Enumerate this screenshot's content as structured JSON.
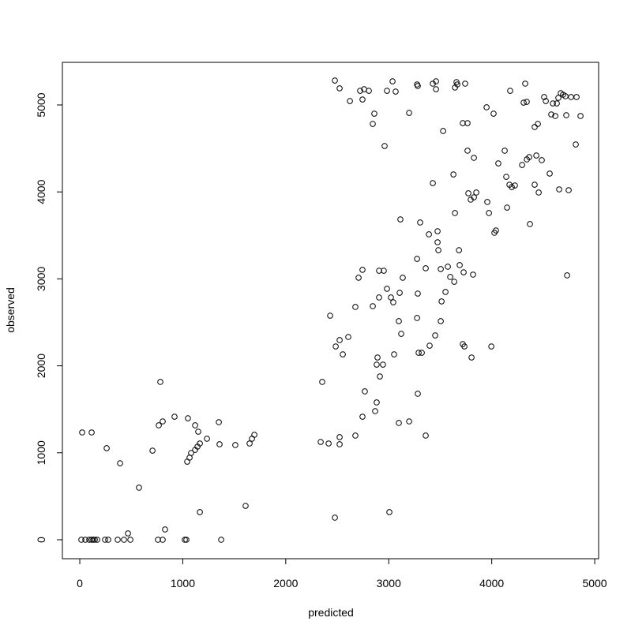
{
  "chart_data": {
    "type": "scatter",
    "xlabel": "predicted",
    "ylabel": "observed",
    "color": "#000000",
    "xlim": [
      -169,
      5038
    ],
    "ylim": [
      -218,
      5490
    ],
    "xticks": [
      0,
      1000,
      2000,
      3000,
      4000,
      5000
    ],
    "yticks": [
      0,
      1000,
      2000,
      3000,
      4000,
      5000
    ],
    "x": [
      15,
      54,
      92,
      115,
      130,
      146,
      169,
      245,
      276,
      368,
      429,
      491,
      759,
      805,
      1020,
      1035,
      1373,
      468,
      828,
      1166,
      1610,
      2477,
      3006,
      575,
      391,
      261,
      23,
      115,
      706,
      782,
      767,
      805,
      920,
      1050,
      1120,
      1150,
      1235,
      1357,
      1350,
      1510,
      1649,
      1672,
      1695,
      1043,
      1066,
      1081,
      1120,
      1143,
      1166,
      2477,
      2523,
      2623,
      2722,
      2761,
      2807,
      2745,
      2860,
      2845,
      2960,
      2983,
      3037,
      3067,
      3198,
      3275,
      3282,
      3428,
      3459,
      3459,
      3643,
      3658,
      3666,
      3742,
      3528,
      3719,
      3765,
      3765,
      3827,
      3950,
      4018,
      4179,
      4310,
      4325,
      4340,
      4417,
      4448,
      4509,
      4525,
      4578,
      4594,
      4617,
      4632,
      4647,
      4670,
      4693,
      4716,
      4724,
      4824,
      4862,
      4770,
      4816,
      4064,
      4126,
      4141,
      4172,
      4195,
      4225,
      4149,
      4295,
      4341,
      4364,
      4433,
      4486,
      4417,
      4456,
      4563,
      4655,
      4747,
      4732,
      4371,
      3428,
      3628,
      3773,
      3796,
      3827,
      3850,
      3957,
      3973,
      4026,
      4041,
      3643,
      3113,
      3305,
      3474,
      3390,
      3474,
      3482,
      3682,
      3275,
      3505,
      3574,
      3689,
      3727,
      3597,
      3636,
      3819,
      3359,
      2745,
      2906,
      2952,
      2707,
      3136,
      2983,
      3021,
      3044,
      2906,
      2845,
      2676,
      3282,
      3106,
      3551,
      3513,
      3505,
      3098,
      3275,
      2431,
      3121,
      3451,
      2607,
      2523,
      2485,
      2554,
      3052,
      3290,
      3321,
      3397,
      3719,
      3735,
      3996,
      3804,
      2891,
      2883,
      2944,
      2914,
      2354,
      2768,
      2883,
      2868,
      2745,
      3282,
      3098,
      3198,
      2676,
      3359,
      2339,
      2416,
      2523,
      2523
    ],
    "y": [
      0,
      0,
      0,
      0,
      0,
      0,
      0,
      0,
      0,
      0,
      0,
      0,
      0,
      0,
      0,
      0,
      0,
      73,
      118,
      318,
      390,
      254,
      318,
      599,
      880,
      1053,
      1234,
      1234,
      1025,
      1815,
      1316,
      1361,
      1415,
      1397,
      1316,
      1243,
      1162,
      1098,
      1352,
      1089,
      1107,
      1162,
      1207,
      898,
      944,
      998,
      1034,
      1071,
      1107,
      5281,
      5191,
      5045,
      5163,
      5181,
      5163,
      5063,
      4900,
      4782,
      4528,
      5163,
      5272,
      5154,
      4909,
      5236,
      5218,
      5245,
      5272,
      5181,
      5200,
      5263,
      5236,
      5245,
      4701,
      4791,
      4791,
      4474,
      4392,
      4973,
      4900,
      5163,
      5027,
      5245,
      5036,
      4746,
      4782,
      5091,
      5045,
      4891,
      5018,
      4873,
      5018,
      5082,
      5136,
      5118,
      5100,
      4882,
      5091,
      4873,
      5091,
      4546,
      4328,
      4474,
      4174,
      4083,
      4056,
      4074,
      3820,
      4310,
      4374,
      4401,
      4419,
      4365,
      4083,
      3993,
      4211,
      4029,
      4020,
      3040,
      3630,
      4101,
      4201,
      3984,
      3911,
      3938,
      3993,
      3884,
      3757,
      3530,
      3557,
      3757,
      3684,
      3648,
      3548,
      3512,
      3421,
      3330,
      3330,
      3230,
      3113,
      3140,
      3158,
      3076,
      3022,
      2967,
      3049,
      3122,
      3104,
      3094,
      3094,
      3013,
      3013,
      2886,
      2786,
      2731,
      2786,
      2686,
      2677,
      2831,
      2840,
      2850,
      2741,
      2514,
      2514,
      2550,
      2577,
      2368,
      2350,
      2332,
      2296,
      2223,
      2132,
      2132,
      2150,
      2150,
      2232,
      2250,
      2223,
      2223,
      2096,
      2096,
      2014,
      2014,
      1878,
      1815,
      1706,
      1579,
      1479,
      1415,
      1679,
      1343,
      1361,
      1198,
      1198,
      1125,
      1107,
      1180,
      1098
    ]
  }
}
